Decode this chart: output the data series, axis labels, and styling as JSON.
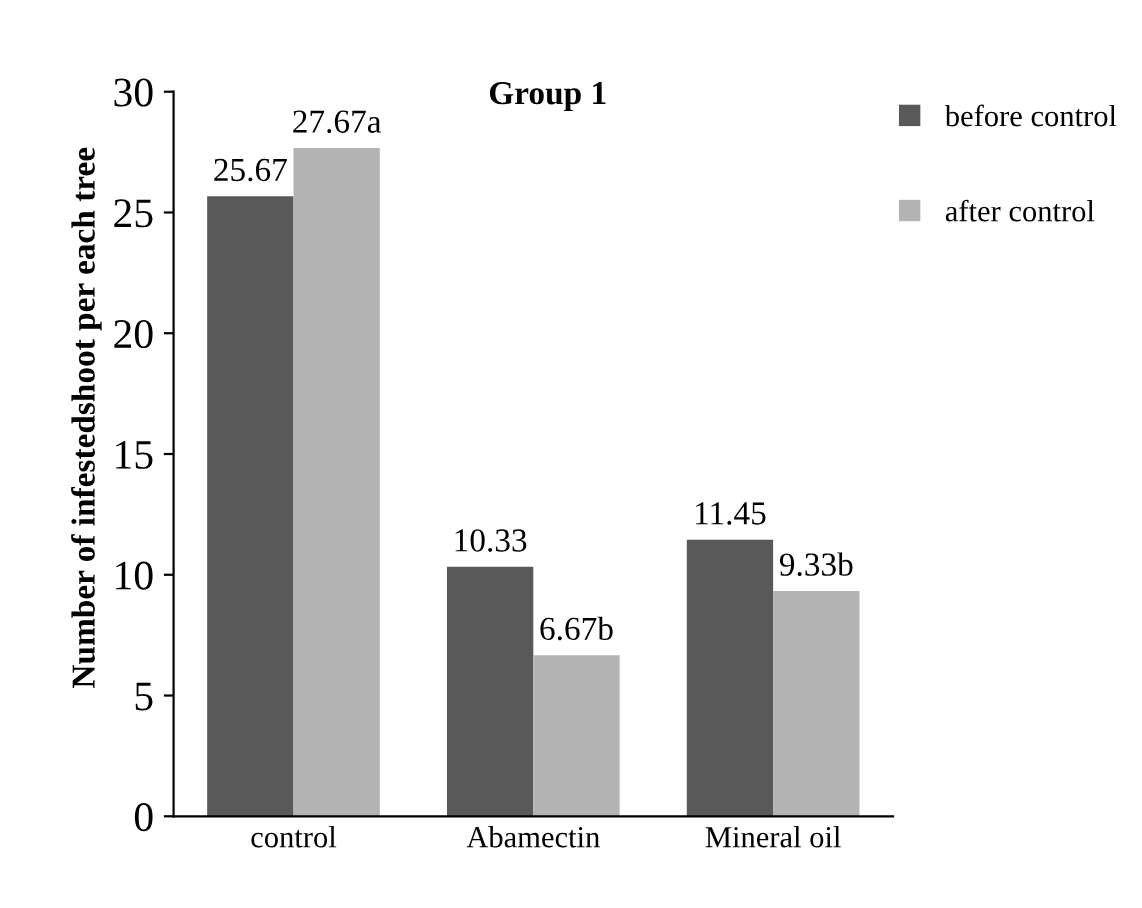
{
  "chart_data": {
    "type": "bar",
    "title": "Group 1",
    "ylabel": "Number of infestedshoot per each tree",
    "categories": [
      "control",
      "Abamectin",
      "Mineral oil"
    ],
    "series": [
      {
        "name": "before control",
        "color": "#595959",
        "values": [
          25.67,
          10.33,
          11.45
        ],
        "value_labels": [
          "25.67",
          "10.33",
          "11.45"
        ]
      },
      {
        "name": "after control",
        "color": "#b3b3b3",
        "values": [
          27.67,
          6.67,
          9.33
        ],
        "value_labels": [
          "27.67a",
          "6.67b",
          "9.33b"
        ]
      }
    ],
    "ylim": [
      0,
      30
    ],
    "yticks": [
      0,
      5,
      10,
      15,
      20,
      25,
      30
    ],
    "grid": false,
    "legend": "top right"
  }
}
